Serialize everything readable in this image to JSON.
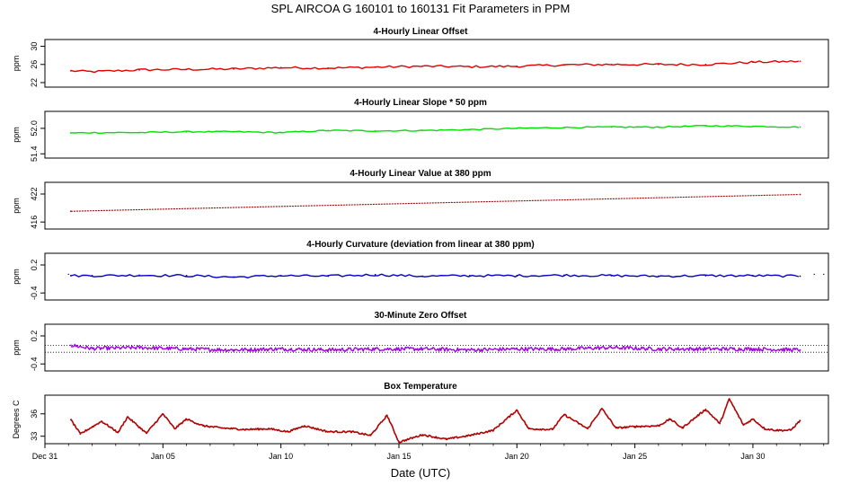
{
  "chart_data": {
    "type": "line",
    "title": "SPL   AIRCOA G   160101 to 160131   Fit Parameters in PPM",
    "xlabel": "Date (UTC)",
    "x_ticks": [
      "Dec 31",
      "Jan 05",
      "Jan 10",
      "Jan 15",
      "Jan 20",
      "Jan 25",
      "Jan 30"
    ],
    "x_tick_days": [
      0,
      5,
      10,
      15,
      20,
      25,
      30
    ],
    "x_range_days": [
      0,
      33.2
    ],
    "x_unit": "days after Dec 31 00:00 UTC",
    "panels": [
      {
        "title": "4-Hourly Linear Offset",
        "ylabel": "ppm",
        "yticks": [
          "22",
          "26",
          "30"
        ],
        "ytick_values": [
          22,
          26,
          30
        ],
        "ylim": [
          21.0,
          31.5
        ],
        "color": "#e00000",
        "style": "line",
        "series": {
          "x": [
            1.1,
            2,
            4,
            6,
            8,
            10,
            12,
            14,
            16,
            18,
            20,
            22,
            24,
            26,
            28,
            30,
            32
          ],
          "y": [
            24.6,
            24.4,
            24.8,
            24.9,
            25.0,
            25.3,
            25.2,
            25.4,
            25.6,
            25.5,
            25.6,
            25.9,
            26.0,
            26.0,
            26.0,
            26.5,
            26.7
          ]
        }
      },
      {
        "title": "4-Hourly Linear Slope * 50 ppm",
        "ylabel": "ppm",
        "yticks": [
          "51.4",
          "52.0"
        ],
        "ytick_values": [
          51.4,
          52.0
        ],
        "ylim": [
          51.3,
          52.4
        ],
        "color": "#00e000",
        "style": "line",
        "series": {
          "x": [
            1.1,
            2,
            4,
            6,
            8,
            10,
            12,
            14,
            16,
            18,
            20,
            22,
            24,
            26,
            28,
            30,
            32
          ],
          "y": [
            51.89,
            51.9,
            51.9,
            51.92,
            51.92,
            51.9,
            51.95,
            51.94,
            51.95,
            51.97,
            52.0,
            52.02,
            52.03,
            52.03,
            52.06,
            52.05,
            52.03
          ]
        }
      },
      {
        "title": "4-Hourly Linear Value at 380 ppm",
        "ylabel": "ppm",
        "yticks": [
          "416",
          "422"
        ],
        "ytick_values": [
          416,
          422
        ],
        "ylim": [
          414.5,
          424.5
        ],
        "color": "#a00000",
        "style": "line",
        "series": {
          "x": [
            1.1,
            32
          ],
          "y": [
            418.3,
            421.9
          ]
        }
      },
      {
        "title": "4-Hourly Curvature (deviation from linear at 380 ppm)",
        "ylabel": "ppm",
        "yticks": [
          "-0.4",
          "0.2"
        ],
        "ytick_values": [
          -0.4,
          0.2
        ],
        "ylim": [
          -0.55,
          0.45
        ],
        "color": "#0000c0",
        "style": "line",
        "series": {
          "x": [
            1.1,
            2,
            4,
            6,
            8,
            10,
            12,
            14,
            16,
            18,
            20,
            22,
            24,
            26,
            28,
            30,
            32
          ],
          "y": [
            -0.03,
            -0.03,
            -0.02,
            -0.03,
            -0.06,
            -0.03,
            -0.04,
            -0.01,
            -0.04,
            -0.03,
            -0.03,
            -0.02,
            -0.03,
            -0.04,
            -0.03,
            -0.03,
            -0.04
          ]
        }
      },
      {
        "title": "30-Minute Zero Offset",
        "ylabel": "ppm",
        "yticks": [
          "-0.4",
          "0.2"
        ],
        "ytick_values": [
          -0.4,
          0.2
        ],
        "ylim": [
          -0.55,
          0.45
        ],
        "color": "#a000e0",
        "style": "line",
        "reference_lines": [
          0.0,
          -0.15
        ],
        "series": {
          "x": [
            1.1,
            2,
            4,
            6,
            8,
            10,
            12,
            14,
            16,
            18,
            20,
            22,
            24,
            26,
            28,
            30,
            32
          ],
          "y": [
            0.0,
            -0.07,
            -0.05,
            -0.08,
            -0.1,
            -0.08,
            -0.1,
            -0.08,
            -0.08,
            -0.1,
            -0.08,
            -0.08,
            -0.05,
            -0.08,
            -0.08,
            -0.08,
            -0.1
          ]
        }
      },
      {
        "title": "Box Temperature",
        "ylabel": "Degrees C",
        "yticks": [
          "33",
          "36"
        ],
        "ytick_values": [
          33,
          36
        ],
        "ylim": [
          32.0,
          38.5
        ],
        "color": "#b00000",
        "style": "line",
        "series": {
          "x": [
            1.1,
            1.5,
            2.4,
            3.1,
            3.5,
            4.3,
            5.0,
            5.5,
            6.0,
            6.7,
            7.5,
            8.5,
            9.5,
            10.3,
            11.0,
            12.0,
            13.0,
            13.8,
            14.5,
            15.0,
            16.0,
            17.0,
            18.0,
            19.0,
            20.0,
            20.5,
            21.5,
            22.0,
            23.0,
            23.6,
            24.2,
            25.0,
            26.0,
            26.5,
            27.0,
            28.0,
            28.6,
            29.0,
            29.6,
            30.0,
            30.5,
            31.0,
            31.6,
            32.0
          ],
          "y": [
            35.2,
            33.3,
            35.0,
            33.5,
            35.6,
            33.4,
            36.0,
            34.0,
            35.3,
            34.4,
            34.1,
            33.9,
            34.0,
            33.6,
            34.4,
            33.6,
            33.6,
            33.1,
            35.8,
            32.2,
            33.2,
            32.6,
            33.1,
            33.8,
            36.5,
            34.0,
            33.9,
            35.9,
            34.0,
            36.7,
            34.1,
            34.3,
            34.4,
            35.3,
            34.1,
            36.6,
            34.7,
            38.0,
            34.5,
            35.3,
            34.0,
            33.8,
            33.8,
            35.1
          ]
        }
      }
    ]
  }
}
